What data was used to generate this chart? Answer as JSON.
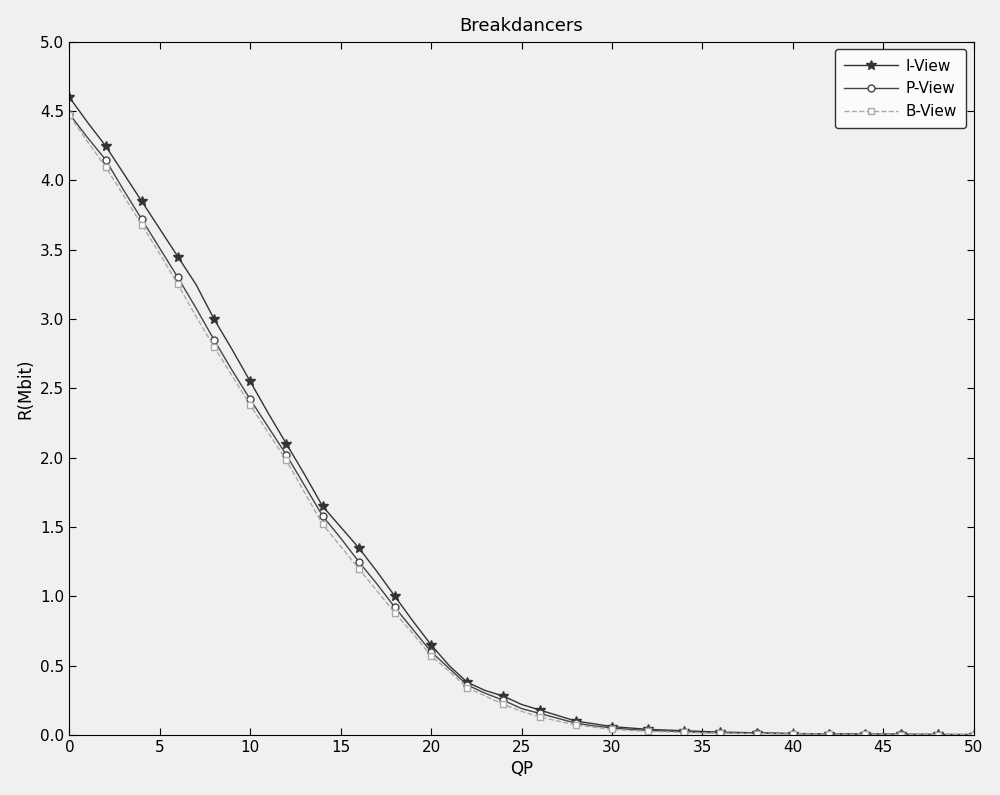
{
  "title": "Breakdancers",
  "xlabel": "QP",
  "ylabel": "R(Mbit)",
  "xlim": [
    0,
    50
  ],
  "ylim": [
    0,
    5
  ],
  "xticks": [
    0,
    5,
    10,
    15,
    20,
    25,
    30,
    35,
    40,
    45,
    50
  ],
  "yticks": [
    0,
    0.5,
    1.0,
    1.5,
    2.0,
    2.5,
    3.0,
    3.5,
    4.0,
    4.5,
    5.0
  ],
  "I_View_x": [
    0,
    1,
    2,
    3,
    4,
    5,
    6,
    7,
    8,
    9,
    10,
    11,
    12,
    13,
    14,
    15,
    16,
    17,
    18,
    19,
    20,
    21,
    22,
    23,
    24,
    25,
    26,
    27,
    28,
    29,
    30,
    31,
    32,
    33,
    34,
    35,
    36,
    37,
    38,
    39,
    40,
    41,
    42,
    43,
    44,
    45,
    46,
    47,
    48,
    49,
    50
  ],
  "I_View_y": [
    4.6,
    4.42,
    4.25,
    4.05,
    3.85,
    3.65,
    3.45,
    3.25,
    3.0,
    2.78,
    2.55,
    2.32,
    2.1,
    1.88,
    1.65,
    1.5,
    1.35,
    1.18,
    1.0,
    0.82,
    0.65,
    0.5,
    0.38,
    0.32,
    0.28,
    0.22,
    0.18,
    0.14,
    0.1,
    0.08,
    0.06,
    0.05,
    0.04,
    0.035,
    0.03,
    0.025,
    0.02,
    0.018,
    0.015,
    0.013,
    0.01,
    0.009,
    0.008,
    0.007,
    0.006,
    0.005,
    0.005,
    0.004,
    0.004,
    0.003,
    0.003
  ],
  "P_View_x": [
    0,
    1,
    2,
    3,
    4,
    5,
    6,
    7,
    8,
    9,
    10,
    11,
    12,
    13,
    14,
    15,
    16,
    17,
    18,
    19,
    20,
    21,
    22,
    23,
    24,
    25,
    26,
    27,
    28,
    29,
    30,
    31,
    32,
    33,
    34,
    35,
    36,
    37,
    38,
    39,
    40,
    41,
    42,
    43,
    44,
    45,
    46,
    47,
    48,
    49,
    50
  ],
  "P_View_y": [
    4.48,
    4.31,
    4.15,
    3.93,
    3.72,
    3.51,
    3.3,
    3.08,
    2.85,
    2.63,
    2.42,
    2.22,
    2.02,
    1.8,
    1.58,
    1.42,
    1.25,
    1.09,
    0.92,
    0.76,
    0.6,
    0.48,
    0.36,
    0.3,
    0.25,
    0.19,
    0.155,
    0.12,
    0.085,
    0.065,
    0.05,
    0.04,
    0.032,
    0.028,
    0.022,
    0.018,
    0.016,
    0.014,
    0.012,
    0.01,
    0.009,
    0.008,
    0.007,
    0.006,
    0.005,
    0.005,
    0.004,
    0.003,
    0.003,
    0.002,
    0.002
  ],
  "B_View_x": [
    0,
    1,
    2,
    3,
    4,
    5,
    6,
    7,
    8,
    9,
    10,
    11,
    12,
    13,
    14,
    15,
    16,
    17,
    18,
    19,
    20,
    21,
    22,
    23,
    24,
    25,
    26,
    27,
    28,
    29,
    30,
    31,
    32,
    33,
    34,
    35,
    36,
    37,
    38,
    39,
    40,
    41,
    42,
    43,
    44,
    45,
    46,
    47,
    48,
    49,
    50
  ],
  "B_View_y": [
    4.47,
    4.28,
    4.1,
    3.89,
    3.68,
    3.47,
    3.25,
    3.02,
    2.8,
    2.59,
    2.38,
    2.18,
    1.98,
    1.75,
    1.52,
    1.36,
    1.2,
    1.04,
    0.88,
    0.73,
    0.57,
    0.46,
    0.34,
    0.28,
    0.22,
    0.17,
    0.13,
    0.1,
    0.072,
    0.056,
    0.04,
    0.032,
    0.025,
    0.022,
    0.018,
    0.015,
    0.013,
    0.011,
    0.01,
    0.008,
    0.007,
    0.007,
    0.006,
    0.005,
    0.004,
    0.004,
    0.003,
    0.003,
    0.002,
    0.002,
    0.002
  ],
  "I_color": "#333333",
  "P_color": "#444444",
  "B_color": "#aaaaaa",
  "background_color": "#f0f0f0",
  "title_fontsize": 13,
  "label_fontsize": 12,
  "tick_fontsize": 11,
  "legend_fontsize": 11
}
